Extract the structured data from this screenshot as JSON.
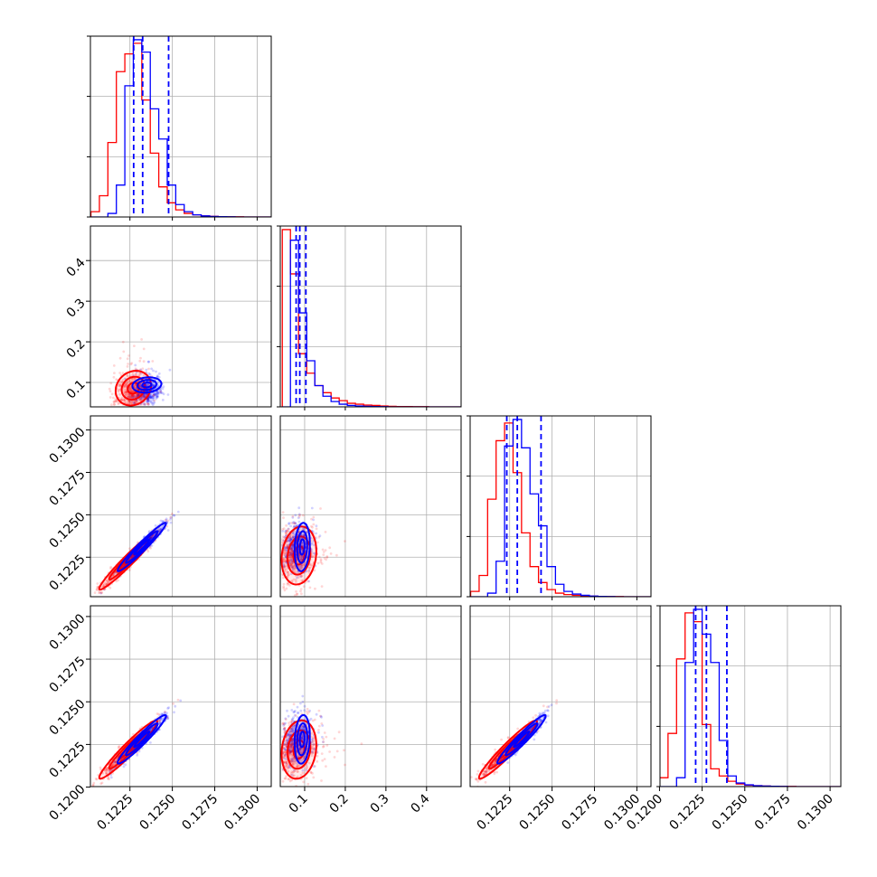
{
  "chart_data": {
    "type": "corner",
    "title": "",
    "parameters": [
      "",
      "",
      "",
      ""
    ],
    "series": [
      {
        "name": "",
        "color": "#ff0000"
      },
      {
        "name": "",
        "color": "#0000ff"
      }
    ],
    "quantile_lines": {
      "color": "#0000ff",
      "style": "dashed",
      "p0": [
        0.12272,
        0.12325,
        0.12478
      ],
      "p1": [
        0.079,
        0.088,
        0.103
      ],
      "p2": [
        0.12233,
        0.12295,
        0.12435
      ],
      "p3": [
        0.12212,
        0.12275,
        0.12395
      ]
    },
    "axis_ranges": {
      "p0": [
        0.12017,
        0.13083
      ],
      "p1": [
        0.04,
        0.485
      ],
      "p2": [
        0.12017,
        0.13083
      ],
      "p3": [
        0.12003,
        0.13063
      ]
    },
    "ticks": {
      "p0": [
        0.1225,
        0.125,
        0.1275,
        0.13
      ],
      "p1": [
        0.1,
        0.2,
        0.3,
        0.4
      ],
      "p2": [
        0.1225,
        0.125,
        0.1275,
        0.13
      ],
      "p3": [
        0.12,
        0.1225,
        0.125,
        0.1275,
        0.13
      ]
    },
    "tick_labels": {
      "p0": [
        "0.1225",
        "0.1250",
        "0.1275",
        "0.1300"
      ],
      "p1": [
        "0.1",
        "0.2",
        "0.3",
        "0.4"
      ],
      "p2": [
        "0.1225",
        "0.1250",
        "0.1275",
        "0.1300"
      ],
      "p3": [
        "0.1200",
        "0.1225",
        "0.1250",
        "0.1275",
        "0.1300"
      ]
    },
    "grid": true,
    "histograms": {
      "p0": {
        "bin_edges": [
          0.1202,
          0.1207,
          0.1212,
          0.1217,
          0.1222,
          0.1227,
          0.1232,
          0.1237,
          0.1242,
          0.1247,
          0.1252,
          0.1257,
          0.1262,
          0.1267,
          0.1272,
          0.1277,
          0.1282,
          0.1287,
          0.1292,
          0.1297,
          0.1302,
          0.1308
        ],
        "red": [
          0.03,
          0.12,
          0.42,
          0.82,
          0.92,
          0.98,
          0.66,
          0.36,
          0.17,
          0.08,
          0.04,
          0.02,
          0.012,
          0.006,
          0.004,
          0.002,
          0.001,
          0.001,
          0.0,
          0.0,
          0.0
        ],
        "blue": [
          0.0,
          0.0,
          0.02,
          0.18,
          0.74,
          1.0,
          0.93,
          0.61,
          0.44,
          0.18,
          0.07,
          0.03,
          0.012,
          0.006,
          0.003,
          0.002,
          0.001,
          0.0,
          0.0,
          0.0,
          0.0
        ]
      },
      "p1": {
        "bin_edges": [
          0.045,
          0.065,
          0.085,
          0.105,
          0.125,
          0.145,
          0.165,
          0.185,
          0.205,
          0.225,
          0.245,
          0.265,
          0.285,
          0.305,
          0.325,
          0.345,
          0.365,
          0.385,
          0.405,
          0.425,
          0.445,
          0.465,
          0.485
        ],
        "red": [
          1.0,
          0.75,
          0.3,
          0.19,
          0.12,
          0.08,
          0.05,
          0.035,
          0.02,
          0.015,
          0.01,
          0.008,
          0.005,
          0.003,
          0.002,
          0.002,
          0.001,
          0.001,
          0.0,
          0.0,
          0.0,
          0.0
        ],
        "blue": [
          0.0,
          0.94,
          0.53,
          0.26,
          0.12,
          0.06,
          0.03,
          0.015,
          0.008,
          0.005,
          0.003,
          0.002,
          0.001,
          0.0,
          0.0,
          0.0,
          0.0,
          0.0,
          0.0,
          0.0,
          0.0,
          0.0
        ]
      },
      "p2": {
        "bin_edges": [
          0.1202,
          0.1207,
          0.1212,
          0.1217,
          0.1222,
          0.1227,
          0.1232,
          0.1237,
          0.1242,
          0.1247,
          0.1252,
          0.1257,
          0.1262,
          0.1267,
          0.1272,
          0.1277,
          0.1282,
          0.1287,
          0.1292,
          0.1297,
          0.1302,
          0.1308
        ],
        "red": [
          0.03,
          0.12,
          0.55,
          0.88,
          0.98,
          0.7,
          0.36,
          0.17,
          0.08,
          0.04,
          0.02,
          0.012,
          0.008,
          0.005,
          0.003,
          0.002,
          0.001,
          0.001,
          0.0,
          0.0,
          0.0
        ],
        "blue": [
          0.0,
          0.0,
          0.02,
          0.2,
          0.85,
          1.0,
          0.84,
          0.58,
          0.4,
          0.17,
          0.07,
          0.03,
          0.015,
          0.008,
          0.004,
          0.002,
          0.001,
          0.0,
          0.0,
          0.0,
          0.0
        ]
      },
      "p3": {
        "bin_edges": [
          0.12,
          0.1205,
          0.121,
          0.1215,
          0.122,
          0.1225,
          0.123,
          0.1235,
          0.124,
          0.1245,
          0.125,
          0.1255,
          0.126,
          0.1265,
          0.127,
          0.1275,
          0.128,
          0.1285,
          0.129,
          0.1295,
          0.13,
          0.1306
        ],
        "red": [
          0.05,
          0.3,
          0.72,
          0.98,
          0.93,
          0.35,
          0.1,
          0.06,
          0.03,
          0.015,
          0.008,
          0.005,
          0.003,
          0.002,
          0.001,
          0.001,
          0.0,
          0.0,
          0.0,
          0.0,
          0.0
        ],
        "blue": [
          0.0,
          0.0,
          0.05,
          0.7,
          1.0,
          0.86,
          0.7,
          0.26,
          0.06,
          0.02,
          0.01,
          0.005,
          0.003,
          0.002,
          0.001,
          0.0,
          0.0,
          0.0,
          0.0,
          0.0,
          0.0
        ]
      }
    },
    "correlations": {
      "p1_p0": {
        "red_mean": [
          0.1227,
          0.086
        ],
        "red_sd": [
          0.00055,
          0.05
        ],
        "blue_mean": [
          0.1235,
          0.094
        ],
        "blue_sd": [
          0.00045,
          0.022
        ],
        "rho": 0.15
      },
      "p2_p0": {
        "red_mean": [
          0.1224,
          0.1223
        ],
        "red_sd": [
          0.0009,
          0.0009
        ],
        "blue_mean": [
          0.1232,
          0.1231
        ],
        "blue_sd": [
          0.00075,
          0.00075
        ],
        "rho": 0.97
      },
      "p2_p1": {
        "red_mean": [
          0.086,
          0.1226
        ],
        "red_sd": [
          0.05,
          0.0009
        ],
        "blue_mean": [
          0.094,
          0.1231
        ],
        "blue_sd": [
          0.022,
          0.00075
        ],
        "rho": 0.15
      },
      "p3_p0": {
        "red_mean": [
          0.1224,
          0.1222
        ],
        "red_sd": [
          0.0009,
          0.0009
        ],
        "blue_mean": [
          0.1232,
          0.1228
        ],
        "blue_sd": [
          0.00075,
          0.00075
        ],
        "rho": 0.96
      },
      "p3_p1": {
        "red_mean": [
          0.086,
          0.1222
        ],
        "red_sd": [
          0.05,
          0.0009
        ],
        "blue_mean": [
          0.094,
          0.1228
        ],
        "blue_sd": [
          0.022,
          0.00075
        ],
        "rho": 0.15
      },
      "p3_p2": {
        "red_mean": [
          0.1224,
          0.1222
        ],
        "red_sd": [
          0.0009,
          0.0009
        ],
        "blue_mean": [
          0.1232,
          0.1228
        ],
        "blue_sd": [
          0.00075,
          0.00075
        ],
        "rho": 0.96
      }
    }
  }
}
